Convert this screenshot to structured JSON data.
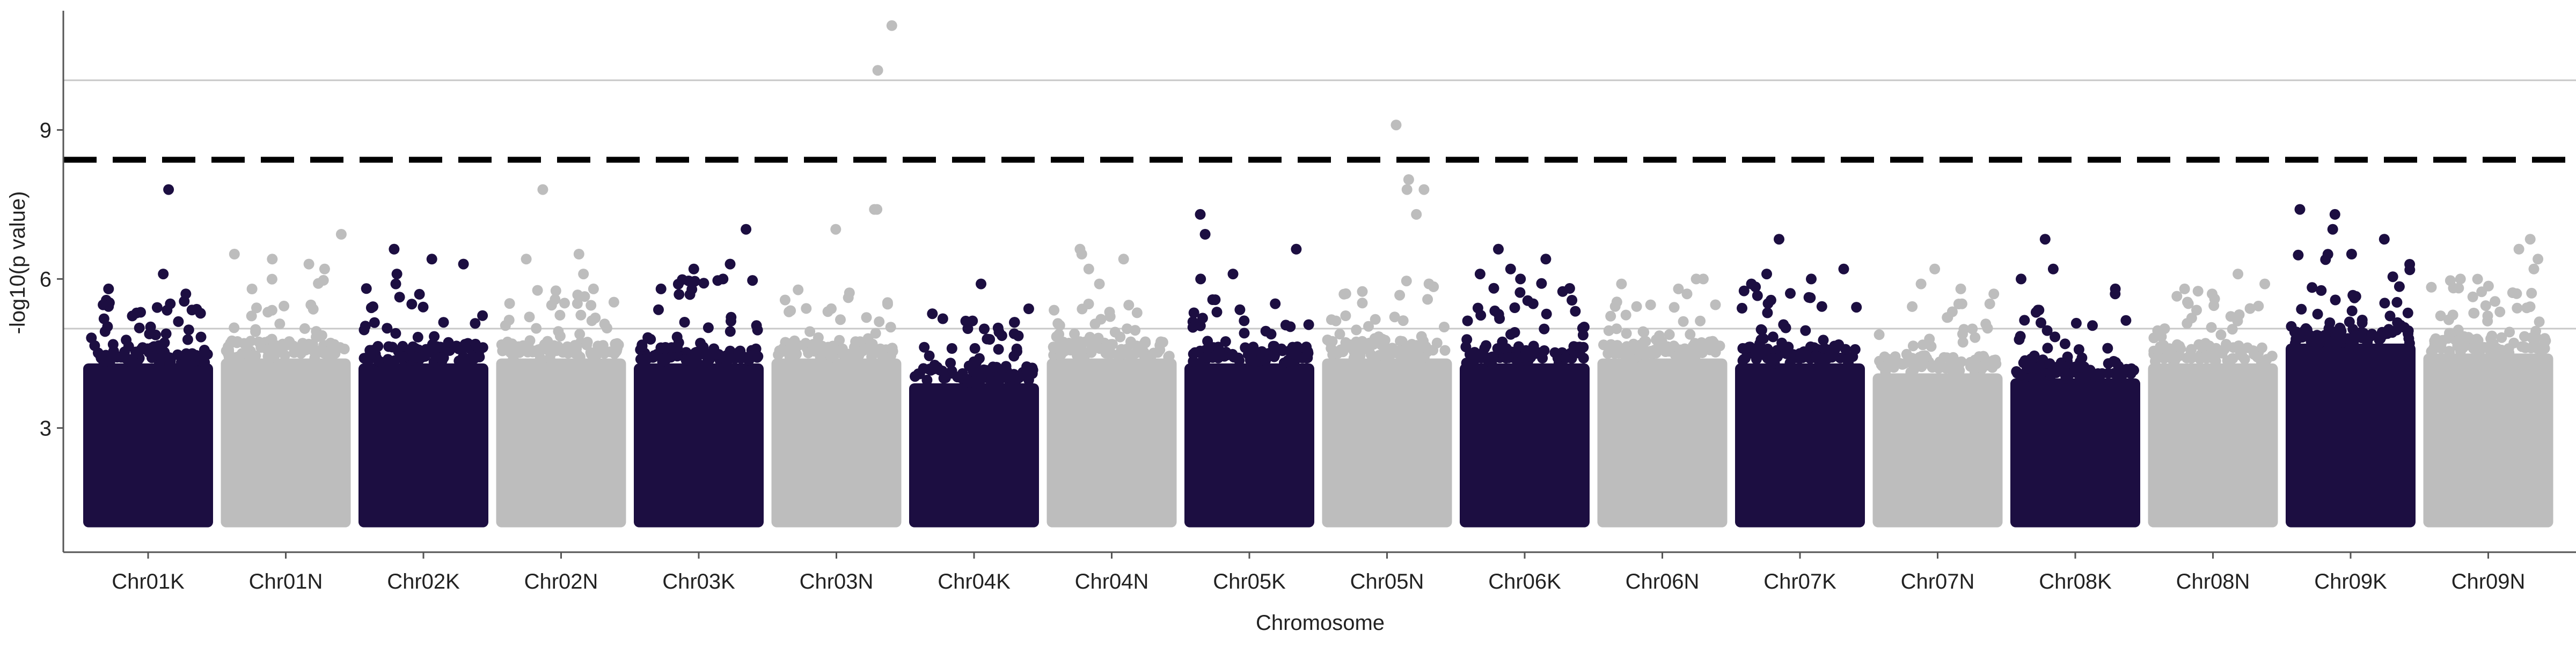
{
  "chart_data": {
    "type": "scatter",
    "title": "",
    "xlabel": "Chromosome",
    "ylabel": "-log10(p value)",
    "categories": [
      "Chr01K",
      "Chr01N",
      "Chr02K",
      "Chr02N",
      "Chr03K",
      "Chr03N",
      "Chr04K",
      "Chr04N",
      "Chr05K",
      "Chr05N",
      "Chr06K",
      "Chr06N",
      "Chr07K",
      "Chr07N",
      "Chr08K",
      "Chr08N",
      "Chr09K",
      "Chr09N"
    ],
    "y_ticks": [
      3,
      6,
      9
    ],
    "ylim": [
      0.5,
      11.4
    ],
    "grid": false,
    "legend": "none",
    "colors": {
      "dark": "#1c0e41",
      "light": "#bdbdbd",
      "threshold_line": "#000000",
      "ref_line": "#c8c8c8",
      "axis": "#555555"
    },
    "point_floor": 1.0,
    "reference_lines": [
      5.0,
      10.0
    ],
    "significance_threshold": 8.4,
    "chromosomes": [
      {
        "name": "Chr01K",
        "color": "dark",
        "bulk_top": 4.3,
        "spread": [
          4.4,
          5.6
        ],
        "top_hits": [
          7.8,
          6.1,
          5.8,
          5.7,
          5.5
        ]
      },
      {
        "name": "Chr01N",
        "color": "light",
        "bulk_top": 4.4,
        "spread": [
          4.5,
          6.0
        ],
        "top_hits": [
          6.9,
          6.5,
          6.4,
          6.3,
          6.2
        ]
      },
      {
        "name": "Chr02K",
        "color": "dark",
        "bulk_top": 4.3,
        "spread": [
          4.4,
          6.0
        ],
        "top_hits": [
          6.6,
          6.4,
          6.3,
          6.1,
          5.9
        ]
      },
      {
        "name": "Chr02N",
        "color": "light",
        "bulk_top": 4.4,
        "spread": [
          4.5,
          5.8
        ],
        "top_hits": [
          7.8,
          6.5,
          6.4,
          6.1,
          5.8
        ]
      },
      {
        "name": "Chr03K",
        "color": "dark",
        "bulk_top": 4.3,
        "spread": [
          4.4,
          6.0
        ],
        "top_hits": [
          7.0,
          6.3,
          6.2,
          6.0,
          5.8
        ]
      },
      {
        "name": "Chr03N",
        "color": "light",
        "bulk_top": 4.4,
        "spread": [
          4.5,
          5.8
        ],
        "top_hits": [
          11.1,
          10.2,
          7.4,
          7.4,
          7.0
        ]
      },
      {
        "name": "Chr04K",
        "color": "dark",
        "bulk_top": 3.9,
        "spread": [
          4.0,
          5.3
        ],
        "top_hits": [
          5.9,
          5.4,
          5.3,
          5.2,
          5.0
        ]
      },
      {
        "name": "Chr04N",
        "color": "light",
        "bulk_top": 4.4,
        "spread": [
          4.5,
          5.6
        ],
        "top_hits": [
          6.6,
          6.5,
          6.4,
          6.2,
          5.9
        ]
      },
      {
        "name": "Chr05K",
        "color": "dark",
        "bulk_top": 4.3,
        "spread": [
          4.4,
          5.6
        ],
        "top_hits": [
          7.3,
          6.9,
          6.6,
          6.1,
          6.0
        ]
      },
      {
        "name": "Chr05N",
        "color": "light",
        "bulk_top": 4.4,
        "spread": [
          4.5,
          6.0
        ],
        "top_hits": [
          9.1,
          8.0,
          7.8,
          7.8,
          7.3
        ]
      },
      {
        "name": "Chr06K",
        "color": "dark",
        "bulk_top": 4.3,
        "spread": [
          4.4,
          6.0
        ],
        "top_hits": [
          6.6,
          6.4,
          6.2,
          6.1,
          6.0
        ]
      },
      {
        "name": "Chr06N",
        "color": "light",
        "bulk_top": 4.4,
        "spread": [
          4.5,
          5.6
        ],
        "top_hits": [
          6.0,
          6.0,
          5.9,
          5.8,
          5.7
        ]
      },
      {
        "name": "Chr07K",
        "color": "dark",
        "bulk_top": 4.3,
        "spread": [
          4.4,
          5.9
        ],
        "top_hits": [
          6.8,
          6.2,
          6.1,
          6.0,
          5.9
        ]
      },
      {
        "name": "Chr07N",
        "color": "light",
        "bulk_top": 4.1,
        "spread": [
          4.2,
          5.5
        ],
        "top_hits": [
          6.2,
          5.9,
          5.8,
          5.7,
          5.5
        ]
      },
      {
        "name": "Chr08K",
        "color": "dark",
        "bulk_top": 4.0,
        "spread": [
          4.1,
          5.6
        ],
        "top_hits": [
          6.8,
          6.2,
          6.0,
          5.8,
          5.7
        ]
      },
      {
        "name": "Chr08N",
        "color": "light",
        "bulk_top": 4.3,
        "spread": [
          4.4,
          5.8
        ],
        "top_hits": [
          6.1,
          5.9,
          5.8,
          5.7,
          5.6
        ]
      },
      {
        "name": "Chr09K",
        "color": "dark",
        "bulk_top": 4.7,
        "spread": [
          4.8,
          6.5
        ],
        "top_hits": [
          7.4,
          7.3,
          7.0,
          6.8,
          6.5
        ]
      },
      {
        "name": "Chr09N",
        "color": "light",
        "bulk_top": 4.5,
        "spread": [
          4.6,
          6.0
        ],
        "top_hits": [
          6.8,
          6.6,
          6.4,
          6.2,
          6.0
        ]
      }
    ]
  }
}
